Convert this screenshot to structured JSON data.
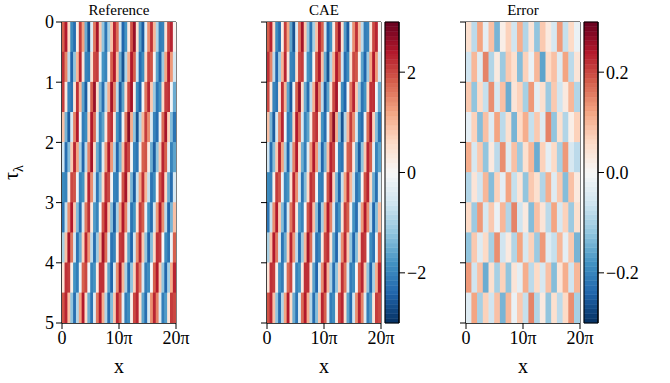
{
  "chart_data": [
    {
      "type": "heatmap",
      "title": "Reference",
      "x_label": "x",
      "y_label": "τλ",
      "xlim": [
        0,
        62.83185307179586
      ],
      "xticks": [
        0,
        {
          "value": 31.41592653589793,
          "label": "10π"
        },
        {
          "value": 62.83185307179586,
          "label": "20π"
        }
      ],
      "ylim": [
        0,
        5
      ],
      "yticks": [
        0,
        1,
        2,
        3,
        4,
        5
      ],
      "color_range": [
        -3,
        3
      ],
      "cells": [
        [
          1.8,
          2.4,
          0.6,
          -1.9,
          -2.3,
          0.2,
          2.1,
          1.2,
          -1.5,
          -2.6,
          -0.4,
          1.6,
          2.5,
          0.8,
          -1.2,
          -2.2,
          -1.0,
          0.9,
          2.3,
          1.7,
          -0.6,
          -2.4,
          -1.8,
          0.3,
          1.9,
          2.6,
          0.5,
          -1.7,
          -2.5,
          -0.3,
          1.4,
          2.2,
          1.0,
          -0.9,
          -2.1,
          -2.0,
          0.4,
          2.0,
          2.3,
          0.1
        ],
        [
          2.2,
          1.5,
          -0.8,
          -2.4,
          -1.2,
          1.0,
          2.3,
          0.4,
          -2.0,
          -2.1,
          0.5,
          2.0,
          2.1,
          -0.2,
          -1.8,
          -2.0,
          0.1,
          1.8,
          2.4,
          0.9,
          -1.5,
          -2.6,
          -0.9,
          1.1,
          2.4,
          1.8,
          -0.6,
          -2.3,
          -1.9,
          0.6,
          2.0,
          1.9,
          0.1,
          -1.6,
          -2.4,
          -1.1,
          1.2,
          2.4,
          1.3,
          -0.5
        ],
        [
          2.1,
          0.3,
          -2.0,
          -2.2,
          0.4,
          2.2,
          1.0,
          -1.6,
          -2.5,
          -0.2,
          1.8,
          2.6,
          0.6,
          -1.4,
          -2.3,
          -0.8,
          1.1,
          2.5,
          1.5,
          -0.8,
          -2.5,
          -1.6,
          0.5,
          2.0,
          2.5,
          0.2,
          -1.9,
          -2.4,
          -0.1,
          1.6,
          2.3,
          0.8,
          -1.1,
          -2.2,
          -1.8,
          0.6,
          2.1,
          2.2,
          -0.1,
          -1.5
        ],
        [
          0.9,
          -1.4,
          -2.5,
          -0.5,
          1.5,
          2.4,
          -0.1,
          -2.1,
          -1.9,
          0.7,
          2.4,
          1.7,
          -0.5,
          -2.0,
          -1.6,
          0.3,
          2.0,
          2.2,
          0.4,
          -1.8,
          -2.3,
          -0.2,
          1.6,
          2.7,
          1.1,
          -1.2,
          -2.6,
          -0.9,
          1.0,
          2.1,
          1.4,
          -0.5,
          -2.0,
          -2.3,
          -0.2,
          1.7,
          2.5,
          0.7,
          -1.3,
          -2.2
        ],
        [
          -0.6,
          -2.3,
          -1.3,
          0.8,
          2.3,
          1.2,
          -1.0,
          -2.4,
          -0.8,
          1.5,
          2.5,
          0.6,
          -1.5,
          -2.1,
          -0.4,
          1.3,
          2.4,
          1.3,
          -0.9,
          -2.4,
          -1.4,
          0.9,
          2.3,
          2.0,
          -0.1,
          -2.0,
          -2.2,
          0.2,
          1.8,
          1.9,
          0.3,
          -1.5,
          -2.5,
          -1.2,
          0.8,
          2.3,
          1.8,
          -0.3,
          -2.0,
          -1.6
        ],
        [
          -1.9,
          -2.0,
          0.2,
          2.0,
          1.9,
          -0.2,
          -2.0,
          -1.8,
          0.5,
          2.3,
          1.4,
          -0.6,
          -2.2,
          -1.3,
          0.6,
          2.2,
          2.0,
          -0.1,
          -2.0,
          -2.1,
          0.1,
          1.9,
          2.5,
          0.7,
          -1.4,
          -2.5,
          -0.7,
          1.2,
          2.2,
          1.0,
          -0.7,
          -2.2,
          -1.9,
          0.1,
          1.9,
          2.3,
          0.6,
          -1.5,
          -2.3,
          -0.5
        ],
        [
          -2.2,
          -0.7,
          1.4,
          2.4,
          0.8,
          -1.3,
          -2.3,
          -0.5,
          1.6,
          2.2,
          0.3,
          -1.7,
          -2.0,
          0.0,
          1.9,
          2.4,
          0.9,
          -1.3,
          -2.5,
          -1.0,
          1.2,
          2.4,
          1.5,
          -0.5,
          -2.2,
          -1.8,
          0.4,
          2.1,
          1.8,
          -0.2,
          -1.8,
          -2.3,
          -0.6,
          1.3,
          2.4,
          1.4,
          -0.8,
          -2.4,
          -1.4,
          0.9
        ],
        [
          -1.0,
          0.9,
          2.5,
          1.6,
          -0.5,
          -2.2,
          -1.5,
          0.7,
          2.3,
          1.3,
          -0.8,
          -2.3,
          -1.1,
          1.0,
          2.5,
          1.7,
          -0.4,
          -2.2,
          -2.0,
          0.3,
          2.1,
          2.2,
          0.4,
          -1.6,
          -2.4,
          -0.6,
          1.4,
          2.3,
          0.8,
          -1.2,
          -2.4,
          -1.3,
          0.6,
          2.2,
          2.1,
          0.0,
          -1.9,
          -2.2,
          -0.2,
          1.8
        ],
        [
          0.4,
          2.2,
          2.1,
          0.2,
          -1.8,
          -2.1,
          -0.2,
          1.8,
          2.0,
          -0.1,
          -2.0,
          -1.8,
          0.3,
          2.2,
          2.2,
          0.4,
          -1.6,
          -2.4,
          -0.5,
          1.4,
          2.5,
          1.0,
          -1.0,
          -2.3,
          -1.2,
          0.7,
          2.2,
          1.6,
          -0.5,
          -2.1,
          -1.9,
          0.0,
          1.8,
          2.4,
          0.8,
          -1.2,
          -2.4,
          -1.0,
          1.1,
          2.3
        ],
        [
          1.9,
          2.3,
          0.9,
          -1.2,
          -2.3,
          -0.9,
          1.2,
          2.4,
          0.6,
          -1.5,
          -2.2,
          -0.4,
          1.6,
          2.4,
          1.1,
          -0.9,
          -2.3,
          -1.3,
          0.8,
          2.3,
          1.8,
          -0.3,
          -2.1,
          -1.9,
          0.2,
          2.0,
          2.3,
          0.5,
          -1.6,
          -2.3,
          -0.5,
          1.4,
          2.3,
          1.5,
          -0.4,
          -2.1,
          -1.7,
          0.4,
          2.1,
          2.0
        ]
      ]
    },
    {
      "type": "heatmap",
      "title": "CAE",
      "x_label": "x",
      "tick_labels": "x",
      "xlim": [
        0,
        62.83185307179586
      ],
      "xticks": [
        0,
        {
          "value": 31.41592653589793,
          "label": "10π"
        },
        {
          "value": 62.83185307179586,
          "label": "20π"
        }
      ],
      "ylim": [
        0,
        5
      ],
      "yticks": [
        0,
        1,
        2,
        3,
        4,
        5
      ],
      "colorbar": {
        "range": [
          -3,
          3
        ],
        "ticks": [
          {
            "value": -2,
            "label": "−2"
          },
          0,
          2
        ]
      },
      "cells": [
        [
          1.8,
          2.3,
          0.6,
          -1.9,
          -2.3,
          0.2,
          2.1,
          1.2,
          -1.6,
          -2.6,
          -0.4,
          1.6,
          2.5,
          0.8,
          -1.2,
          -2.2,
          -1.0,
          0.9,
          2.3,
          1.8,
          -0.6,
          -2.4,
          -1.8,
          0.3,
          1.9,
          2.6,
          0.5,
          -1.7,
          -2.5,
          -0.3,
          1.4,
          2.2,
          1.0,
          -0.8,
          -2.1,
          -2.0,
          0.4,
          2.0,
          2.3,
          0.1
        ],
        [
          2.2,
          1.5,
          -0.8,
          -2.4,
          -1.1,
          1.0,
          2.3,
          0.4,
          -2.0,
          -2.1,
          0.5,
          2.0,
          2.1,
          -0.2,
          -1.8,
          -2.0,
          0.1,
          1.9,
          2.4,
          0.9,
          -1.5,
          -2.6,
          -0.9,
          1.1,
          2.4,
          1.8,
          -0.6,
          -2.3,
          -1.9,
          0.5,
          2.0,
          1.9,
          0.1,
          -1.6,
          -2.4,
          -1.1,
          1.2,
          2.4,
          1.3,
          -0.5
        ],
        [
          2.0,
          0.3,
          -2.0,
          -2.2,
          0.4,
          2.2,
          1.0,
          -1.6,
          -2.5,
          -0.2,
          1.8,
          2.6,
          0.6,
          -1.5,
          -2.3,
          -0.8,
          1.1,
          2.5,
          1.5,
          -0.8,
          -2.5,
          -1.6,
          0.5,
          2.0,
          2.5,
          0.2,
          -1.9,
          -2.4,
          -0.1,
          1.6,
          2.3,
          0.8,
          -1.1,
          -2.2,
          -1.8,
          0.6,
          2.2,
          2.2,
          -0.1,
          -1.5
        ],
        [
          0.9,
          -1.4,
          -2.5,
          -0.5,
          1.5,
          2.3,
          -0.1,
          -2.1,
          -1.9,
          0.7,
          2.4,
          1.7,
          -0.5,
          -2.0,
          -1.6,
          0.3,
          2.0,
          2.2,
          0.4,
          -1.8,
          -2.3,
          -0.2,
          1.7,
          2.7,
          1.1,
          -1.2,
          -2.6,
          -0.9,
          1.0,
          2.1,
          1.4,
          -0.5,
          -2.0,
          -2.3,
          -0.2,
          1.7,
          2.5,
          0.7,
          -1.3,
          -2.2
        ],
        [
          -0.6,
          -2.3,
          -1.3,
          0.8,
          2.3,
          1.2,
          -1.0,
          -2.4,
          -0.8,
          1.5,
          2.4,
          0.6,
          -1.5,
          -2.1,
          -0.4,
          1.3,
          2.4,
          1.3,
          -0.9,
          -2.4,
          -1.4,
          0.9,
          2.3,
          2.0,
          -0.1,
          -2.0,
          -2.2,
          0.3,
          1.8,
          1.9,
          0.3,
          -1.5,
          -2.5,
          -1.2,
          0.8,
          2.3,
          1.8,
          -0.3,
          -2.0,
          -1.6
        ],
        [
          -1.9,
          -2.0,
          0.2,
          2.1,
          1.9,
          -0.2,
          -2.0,
          -1.8,
          0.5,
          2.3,
          1.4,
          -0.6,
          -2.2,
          -1.3,
          0.6,
          2.2,
          2.0,
          -0.1,
          -2.0,
          -2.1,
          0.1,
          1.9,
          2.5,
          0.7,
          -1.4,
          -2.4,
          -0.7,
          1.2,
          2.2,
          1.0,
          -0.7,
          -2.2,
          -1.9,
          0.1,
          1.9,
          2.3,
          0.6,
          -1.5,
          -2.3,
          -0.5
        ],
        [
          -2.2,
          -0.7,
          1.4,
          2.4,
          0.8,
          -1.3,
          -2.3,
          -0.5,
          1.6,
          2.2,
          0.3,
          -1.7,
          -2.0,
          0.0,
          1.9,
          2.3,
          0.9,
          -1.3,
          -2.5,
          -1.0,
          1.2,
          2.4,
          1.5,
          -0.5,
          -2.2,
          -1.8,
          0.4,
          2.1,
          1.8,
          -0.2,
          -1.8,
          -2.3,
          -0.6,
          1.3,
          2.4,
          1.4,
          -0.8,
          -2.4,
          -1.3,
          0.9
        ],
        [
          -1.0,
          0.9,
          2.4,
          1.6,
          -0.5,
          -2.2,
          -1.5,
          0.7,
          2.3,
          1.3,
          -0.8,
          -2.3,
          -1.1,
          1.0,
          2.5,
          1.7,
          -0.4,
          -2.2,
          -2.0,
          0.3,
          2.0,
          2.2,
          0.4,
          -1.6,
          -2.4,
          -0.6,
          1.4,
          2.3,
          0.8,
          -1.2,
          -2.4,
          -1.3,
          0.6,
          2.2,
          2.1,
          0.0,
          -1.9,
          -2.2,
          -0.2,
          1.8
        ],
        [
          0.4,
          2.2,
          2.1,
          0.2,
          -1.8,
          -2.1,
          -0.2,
          1.7,
          2.0,
          -0.1,
          -2.0,
          -1.8,
          0.3,
          2.2,
          2.2,
          0.4,
          -1.6,
          -2.4,
          -0.5,
          1.4,
          2.5,
          1.0,
          -1.0,
          -2.3,
          -1.2,
          0.7,
          2.2,
          1.6,
          -0.5,
          -2.1,
          -1.9,
          0.0,
          1.8,
          2.3,
          0.8,
          -1.2,
          -2.4,
          -1.0,
          1.1,
          2.3
        ],
        [
          1.9,
          2.3,
          0.9,
          -1.2,
          -2.3,
          -0.9,
          1.2,
          2.4,
          0.6,
          -1.5,
          -2.2,
          -0.4,
          1.7,
          2.4,
          1.1,
          -0.9,
          -2.3,
          -1.3,
          0.8,
          2.3,
          1.8,
          -0.3,
          -2.1,
          -1.9,
          0.2,
          2.0,
          2.3,
          0.5,
          -1.6,
          -2.3,
          -0.6,
          1.4,
          2.3,
          1.5,
          -0.4,
          -2.1,
          -1.7,
          0.4,
          2.1,
          2.0
        ]
      ]
    },
    {
      "type": "heatmap",
      "title": "Error",
      "x_label": "x",
      "tick_labels": "x",
      "xlim": [
        0,
        62.83185307179586
      ],
      "xticks": [
        0,
        {
          "value": 31.41592653589793,
          "label": "10π"
        },
        {
          "value": 62.83185307179586,
          "label": "20π"
        }
      ],
      "ylim": [
        0,
        5
      ],
      "yticks": [
        0,
        1,
        2,
        3,
        4,
        5
      ],
      "colorbar": {
        "range": [
          -0.3,
          0.3
        ],
        "ticks": [
          {
            "value": -0.2,
            "label": "−0.2"
          },
          {
            "value": 0,
            "label": "0.0"
          },
          0.2
        ]
      },
      "cells": [
        [
          0.05,
          -0.08,
          0.12,
          -0.03,
          0.09,
          -0.14,
          0.02,
          0.07,
          -0.06,
          0.11,
          -0.09,
          0.04,
          -0.12,
          0.08,
          0.03,
          -0.05,
          0.13,
          -0.07,
          0.06,
          -0.02
        ],
        [
          -0.06,
          0.1,
          -0.04,
          0.15,
          -0.09,
          0.03,
          -0.11,
          0.08,
          0.05,
          -0.13,
          0.07,
          -0.02,
          0.1,
          -0.16,
          0.06,
          0.09,
          -0.04,
          0.12,
          -0.08,
          0.04
        ],
        [
          0.08,
          -0.12,
          0.06,
          -0.07,
          0.14,
          -0.05,
          0.09,
          -0.15,
          0.04,
          0.07,
          -0.1,
          0.13,
          -0.03,
          0.05,
          -0.11,
          0.08,
          -0.06,
          0.03,
          0.1,
          -0.09
        ],
        [
          -0.03,
          0.07,
          -0.13,
          0.09,
          -0.04,
          0.12,
          -0.08,
          0.05,
          -0.14,
          0.06,
          0.11,
          -0.07,
          0.08,
          -0.04,
          0.15,
          -0.12,
          0.05,
          -0.09,
          0.02,
          0.07
        ],
        [
          0.11,
          -0.05,
          0.08,
          -0.12,
          0.03,
          -0.08,
          0.14,
          -0.04,
          0.09,
          -0.11,
          0.05,
          0.1,
          -0.15,
          0.07,
          -0.03,
          0.06,
          -0.1,
          0.13,
          -0.05,
          -0.08
        ],
        [
          -0.09,
          0.04,
          -0.06,
          0.1,
          -0.13,
          0.07,
          -0.03,
          0.12,
          -0.07,
          0.04,
          -0.12,
          0.08,
          0.05,
          -0.09,
          0.11,
          -0.04,
          0.08,
          -0.13,
          0.09,
          0.03
        ],
        [
          0.06,
          -0.11,
          0.13,
          -0.05,
          0.08,
          -0.02,
          0.1,
          -0.09,
          0.15,
          -0.06,
          0.03,
          -0.13,
          0.09,
          0.04,
          -0.08,
          0.12,
          -0.05,
          0.07,
          -0.11,
          0.05
        ],
        [
          -0.12,
          0.08,
          -0.04,
          0.06,
          -0.1,
          0.14,
          -0.06,
          0.03,
          -0.09,
          0.12,
          -0.05,
          0.07,
          -0.11,
          0.13,
          -0.04,
          -0.07,
          0.1,
          -0.03,
          0.08,
          -0.14
        ],
        [
          0.13,
          -0.06,
          0.09,
          -0.15,
          0.05,
          -0.1,
          0.07,
          -0.12,
          0.04,
          -0.03,
          0.11,
          -0.08,
          0.06,
          -0.05,
          0.09,
          -0.13,
          0.04,
          0.11,
          -0.06,
          0.1
        ],
        [
          -0.04,
          0.12,
          -0.1,
          0.07,
          -0.06,
          0.09,
          -0.14,
          0.1,
          -0.02,
          0.08,
          -0.07,
          0.15,
          -0.09,
          0.03,
          -0.12,
          0.05,
          -0.08,
          0.06,
          0.14,
          -0.1
        ]
      ]
    }
  ]
}
